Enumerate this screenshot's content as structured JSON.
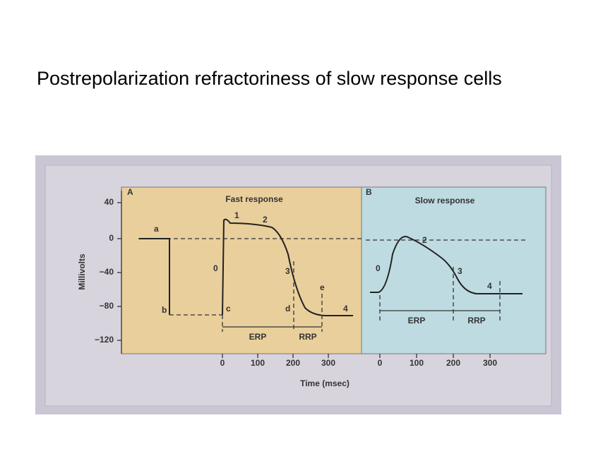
{
  "title": "Postrepolarization refractoriness of slow response cells",
  "figure": {
    "y_axis": {
      "label": "Millivolts",
      "ticks": [
        "40",
        "0",
        "−40",
        "−80",
        "−120"
      ]
    },
    "x_axis": {
      "label": "Time (msec)",
      "panel_a_ticks": [
        "0",
        "100",
        "200",
        "300"
      ],
      "panel_b_ticks": [
        "0",
        "100",
        "200",
        "300"
      ]
    },
    "panel_a": {
      "letter": "A",
      "title": "Fast response",
      "phases": {
        "p1": "1",
        "p2": "2",
        "p0": "0",
        "p3": "3",
        "p4": "4"
      },
      "points": {
        "a": "a",
        "b": "b",
        "c": "c",
        "d": "d",
        "e": "e"
      },
      "erp": "ERP",
      "rrp": "RRP"
    },
    "panel_b": {
      "letter": "B",
      "title": "Slow response",
      "phases": {
        "p0": "0",
        "p2": "2",
        "p3": "3",
        "p4": "4"
      },
      "erp": "ERP",
      "rrp": "RRP"
    }
  }
}
